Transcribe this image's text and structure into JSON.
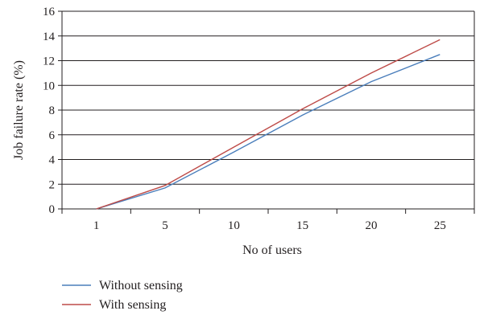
{
  "chart_data": {
    "type": "line",
    "title": "",
    "xlabel": "No of users",
    "ylabel": "Job failure rate (%)",
    "x_ticks": [
      1,
      5,
      10,
      15,
      20,
      25
    ],
    "y_ticks": [
      0,
      2,
      4,
      6,
      8,
      10,
      12,
      14,
      16
    ],
    "xlim": [
      1,
      25
    ],
    "ylim": [
      0,
      16
    ],
    "grid": "horizontal",
    "legend_position": "bottom-left",
    "series": [
      {
        "name": "Without sensing",
        "color": "#4a7ebb",
        "x": [
          1,
          5,
          10,
          15,
          20,
          25
        ],
        "y": [
          0,
          1.7,
          4.6,
          7.6,
          10.3,
          12.5
        ]
      },
      {
        "name": "With sensing",
        "color": "#be4b48",
        "x": [
          1,
          5,
          10,
          15,
          20,
          25
        ],
        "y": [
          0,
          1.9,
          5.0,
          8.1,
          11.0,
          13.7
        ]
      }
    ]
  }
}
